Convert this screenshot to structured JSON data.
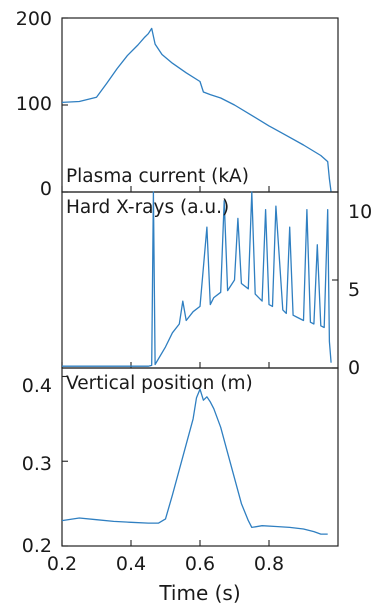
{
  "colors": {
    "trace": "#2f7fc1",
    "axis": "#222222",
    "text": "#1a1a1a"
  },
  "chart_data": [
    {
      "type": "line",
      "title": "Plasma current (kA)",
      "xlabel": "",
      "ylabel": "",
      "xlim": [
        0.2,
        1.0
      ],
      "ylim": [
        0,
        200
      ],
      "yticks": [
        "0",
        "100",
        "200"
      ],
      "series": [
        {
          "x": [
            0.2,
            0.25,
            0.3,
            0.33,
            0.36,
            0.39,
            0.42,
            0.44,
            0.45,
            0.46,
            0.47,
            0.49,
            0.52,
            0.56,
            0.6,
            0.61,
            0.63,
            0.66,
            0.7,
            0.75,
            0.8,
            0.85,
            0.9,
            0.95,
            0.97,
            0.975,
            0.98
          ],
          "y": [
            103,
            104,
            109,
            125,
            142,
            157,
            169,
            178,
            182,
            188,
            170,
            158,
            148,
            137,
            127,
            115,
            112,
            108,
            100,
            88,
            76,
            65,
            54,
            42,
            35,
            15,
            0
          ]
        }
      ]
    },
    {
      "type": "line",
      "title": "Hard X-rays (a.u.)",
      "xlabel": "",
      "ylabel": "",
      "xlim": [
        0.2,
        1.0
      ],
      "ylim": [
        0,
        10
      ],
      "yticks": [
        "0",
        "5",
        "10"
      ],
      "series": [
        {
          "x": [
            0.2,
            0.3,
            0.4,
            0.45,
            0.46,
            0.465,
            0.47,
            0.5,
            0.52,
            0.54,
            0.55,
            0.56,
            0.58,
            0.6,
            0.62,
            0.63,
            0.64,
            0.66,
            0.67,
            0.68,
            0.7,
            0.71,
            0.72,
            0.74,
            0.75,
            0.76,
            0.78,
            0.79,
            0.8,
            0.81,
            0.82,
            0.84,
            0.85,
            0.86,
            0.87,
            0.88,
            0.9,
            0.91,
            0.92,
            0.93,
            0.94,
            0.95,
            0.96,
            0.97,
            0.975,
            0.98
          ],
          "y": [
            0.1,
            0.1,
            0.1,
            0.1,
            0.15,
            10,
            0.2,
            1.2,
            2.0,
            2.5,
            3.8,
            2.7,
            3.2,
            3.5,
            8.0,
            3.6,
            4.0,
            4.3,
            9.5,
            4.4,
            5.0,
            8.5,
            4.8,
            4.5,
            10,
            4.2,
            3.8,
            9.0,
            3.6,
            3.5,
            9.2,
            3.3,
            3.1,
            8.0,
            3.0,
            2.9,
            2.7,
            9.0,
            2.6,
            2.5,
            7.0,
            2.4,
            2.3,
            9.0,
            1.5,
            0.3
          ]
        }
      ]
    },
    {
      "type": "line",
      "title": "Vertical position (m)",
      "xlabel": "Time (s)",
      "ylabel": "",
      "xlim": [
        0.2,
        1.0
      ],
      "ylim": [
        0.2,
        0.41
      ],
      "xticks": [
        "0.2",
        "0.4",
        "0.6",
        "0.8"
      ],
      "yticks": [
        "0.2",
        "0.3",
        "0.4"
      ],
      "series": [
        {
          "x": [
            0.2,
            0.25,
            0.3,
            0.35,
            0.4,
            0.45,
            0.48,
            0.5,
            0.52,
            0.54,
            0.56,
            0.58,
            0.59,
            0.6,
            0.61,
            0.62,
            0.63,
            0.64,
            0.66,
            0.68,
            0.7,
            0.72,
            0.74,
            0.75,
            0.78,
            0.82,
            0.86,
            0.9,
            0.93,
            0.95,
            0.97
          ],
          "y": [
            0.23,
            0.233,
            0.231,
            0.229,
            0.228,
            0.227,
            0.227,
            0.232,
            0.26,
            0.29,
            0.32,
            0.35,
            0.375,
            0.385,
            0.372,
            0.376,
            0.37,
            0.362,
            0.34,
            0.31,
            0.28,
            0.25,
            0.23,
            0.222,
            0.224,
            0.223,
            0.222,
            0.22,
            0.217,
            0.214,
            0.214
          ]
        }
      ]
    }
  ]
}
